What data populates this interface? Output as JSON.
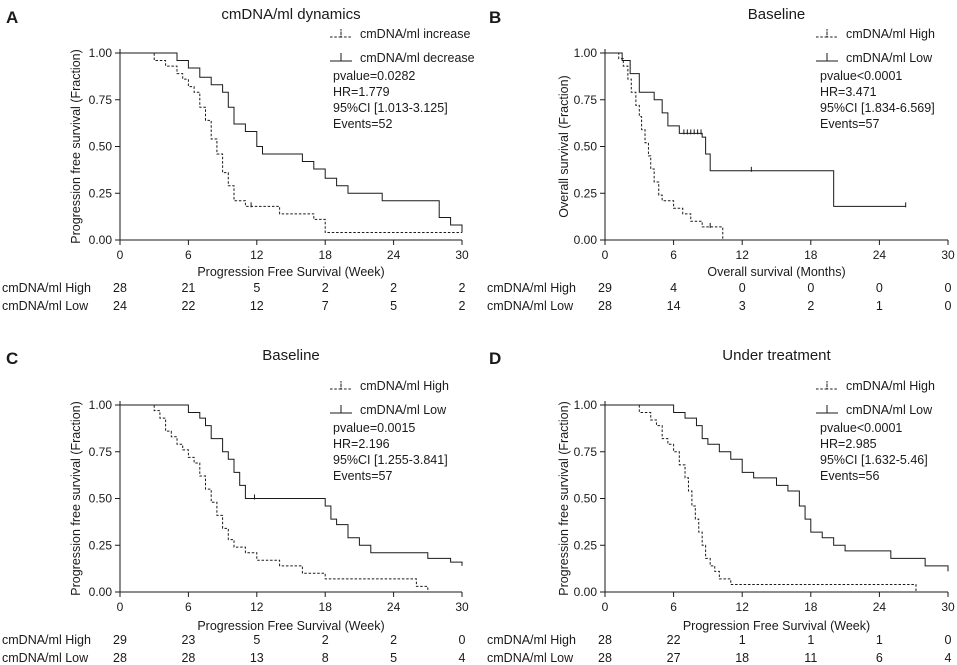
{
  "figure": {
    "layout": "2x2 grid of Kaplan-Meier survival panels"
  },
  "chart_data": [
    {
      "panel": "A",
      "type": "line",
      "subtype": "kaplan-meier",
      "title": "cmDNA/ml dynamics",
      "xlabel": "Progression Free Survival (Week)",
      "ylabel": "Progression free survival (Fraction)",
      "xlim": [
        0,
        30
      ],
      "ylim": [
        0,
        1.0
      ],
      "xticks": [
        "0",
        "6",
        "12",
        "18",
        "24",
        "30"
      ],
      "yticks": [
        "0.00",
        "0.25",
        "0.50",
        "0.75",
        "1.00"
      ],
      "legend_position": "top-right",
      "series": [
        {
          "name": "cmDNA/ml increase",
          "style": "dashed",
          "steps": [
            [
              0,
              1.0
            ],
            [
              3,
              0.96
            ],
            [
              4,
              0.93
            ],
            [
              5,
              0.89
            ],
            [
              5.5,
              0.86
            ],
            [
              6,
              0.82
            ],
            [
              6.5,
              0.79
            ],
            [
              7,
              0.71
            ],
            [
              7.5,
              0.64
            ],
            [
              8,
              0.54
            ],
            [
              8.5,
              0.46
            ],
            [
              9,
              0.36
            ],
            [
              9.5,
              0.29
            ],
            [
              10,
              0.21
            ],
            [
              11,
              0.18
            ],
            [
              14,
              0.14
            ],
            [
              17,
              0.11
            ],
            [
              18,
              0.04
            ],
            [
              30,
              0.04
            ]
          ],
          "censor": [
            11.5
          ]
        },
        {
          "name": "cmDNA/ml decrease",
          "style": "solid",
          "steps": [
            [
              0,
              1.0
            ],
            [
              5,
              0.96
            ],
            [
              6,
              0.92
            ],
            [
              7,
              0.87
            ],
            [
              8,
              0.83
            ],
            [
              9,
              0.79
            ],
            [
              9.5,
              0.71
            ],
            [
              10,
              0.62
            ],
            [
              11,
              0.58
            ],
            [
              12,
              0.5
            ],
            [
              12.5,
              0.46
            ],
            [
              16,
              0.42
            ],
            [
              17,
              0.38
            ],
            [
              18,
              0.33
            ],
            [
              19,
              0.29
            ],
            [
              20,
              0.25
            ],
            [
              23,
              0.21
            ],
            [
              28,
              0.12
            ],
            [
              29,
              0.08
            ],
            [
              30,
              0.04
            ]
          ],
          "censor": []
        }
      ],
      "stats": {
        "pvalue": "pvalue=0.0282",
        "hr": "HR=1.779",
        "ci": "95%CI [1.013-3.125]",
        "events": "Events=52"
      },
      "risk_table": [
        {
          "label": "cmDNA/ml High",
          "counts": [
            "28",
            "21",
            "5",
            "2",
            "2",
            "2"
          ]
        },
        {
          "label": "cmDNA/ml Low",
          "counts": [
            "24",
            "22",
            "12",
            "7",
            "5",
            "2"
          ]
        }
      ]
    },
    {
      "panel": "B",
      "type": "line",
      "subtype": "kaplan-meier",
      "title": "Baseline",
      "xlabel": "Overall survival (Months)",
      "ylabel": "Overall survival (Fraction)",
      "xlim": [
        0,
        30
      ],
      "ylim": [
        0,
        1.0
      ],
      "xticks": [
        "0",
        "6",
        "12",
        "18",
        "24",
        "30"
      ],
      "yticks": [
        "0.00",
        "0.25",
        "0.50",
        "0.75",
        "1.00"
      ],
      "legend_position": "top-right",
      "series": [
        {
          "name": "cmDNA/ml High",
          "style": "dashed",
          "steps": [
            [
              0,
              1.0
            ],
            [
              1.2,
              0.97
            ],
            [
              1.6,
              0.93
            ],
            [
              2,
              0.86
            ],
            [
              2.3,
              0.79
            ],
            [
              2.7,
              0.72
            ],
            [
              3,
              0.66
            ],
            [
              3.2,
              0.59
            ],
            [
              3.5,
              0.52
            ],
            [
              3.8,
              0.45
            ],
            [
              4,
              0.38
            ],
            [
              4.3,
              0.31
            ],
            [
              4.7,
              0.24
            ],
            [
              5,
              0.21
            ],
            [
              6,
              0.17
            ],
            [
              6.8,
              0.14
            ],
            [
              7.5,
              0.1
            ],
            [
              8.5,
              0.07
            ],
            [
              10.3,
              0.0
            ]
          ],
          "censor": [
            9.2
          ]
        },
        {
          "name": "cmDNA/ml Low",
          "style": "solid",
          "steps": [
            [
              0,
              1.0
            ],
            [
              1.5,
              0.96
            ],
            [
              2.2,
              0.89
            ],
            [
              3,
              0.79
            ],
            [
              4.3,
              0.75
            ],
            [
              5,
              0.68
            ],
            [
              5.5,
              0.61
            ],
            [
              6.5,
              0.57
            ],
            [
              8.5,
              0.55
            ],
            [
              8.8,
              0.46
            ],
            [
              9.2,
              0.37
            ],
            [
              20,
              0.18
            ],
            [
              26.3,
              0.18
            ]
          ],
          "censor": [
            6.9,
            7.2,
            7.5,
            7.8,
            8.1,
            8.4,
            12.8,
            26.3
          ]
        }
      ],
      "stats": {
        "pvalue": "pvalue<0.0001",
        "hr": "HR=3.471",
        "ci": "95%CI [1.834-6.569]",
        "events": "Events=57"
      },
      "risk_table": [
        {
          "label": "cmDNA/ml High",
          "counts": [
            "29",
            "4",
            "0",
            "0",
            "0",
            "0"
          ]
        },
        {
          "label": "cmDNA/ml Low",
          "counts": [
            "28",
            "14",
            "3",
            "2",
            "1",
            "0"
          ]
        }
      ]
    },
    {
      "panel": "C",
      "type": "line",
      "subtype": "kaplan-meier",
      "title": "Baseline",
      "xlabel": "Progression Free Survival (Week)",
      "ylabel": "Progression free survival (Fraction)",
      "xlim": [
        0,
        30
      ],
      "ylim": [
        0,
        1.0
      ],
      "xticks": [
        "0",
        "6",
        "12",
        "18",
        "24",
        "30"
      ],
      "yticks": [
        "0.00",
        "0.25",
        "0.50",
        "0.75",
        "1.00"
      ],
      "legend_position": "top-right",
      "series": [
        {
          "name": "cmDNA/ml High",
          "style": "dashed",
          "steps": [
            [
              0,
              1.0
            ],
            [
              3,
              0.97
            ],
            [
              3.5,
              0.93
            ],
            [
              4,
              0.86
            ],
            [
              4.5,
              0.83
            ],
            [
              5,
              0.79
            ],
            [
              5.5,
              0.76
            ],
            [
              6,
              0.72
            ],
            [
              6.5,
              0.69
            ],
            [
              7,
              0.62
            ],
            [
              7.5,
              0.55
            ],
            [
              8,
              0.48
            ],
            [
              8.5,
              0.41
            ],
            [
              9,
              0.34
            ],
            [
              9.5,
              0.28
            ],
            [
              10,
              0.24
            ],
            [
              11,
              0.21
            ],
            [
              12,
              0.17
            ],
            [
              14,
              0.14
            ],
            [
              16,
              0.1
            ],
            [
              18,
              0.07
            ],
            [
              26,
              0.03
            ],
            [
              27,
              0.0
            ]
          ],
          "censor": []
        },
        {
          "name": "cmDNA/ml Low",
          "style": "solid",
          "steps": [
            [
              0,
              1.0
            ],
            [
              6,
              0.96
            ],
            [
              7,
              0.93
            ],
            [
              7.5,
              0.89
            ],
            [
              8,
              0.82
            ],
            [
              9,
              0.75
            ],
            [
              9.5,
              0.71
            ],
            [
              10,
              0.64
            ],
            [
              10.5,
              0.57
            ],
            [
              11,
              0.5
            ],
            [
              18,
              0.46
            ],
            [
              18.5,
              0.39
            ],
            [
              19,
              0.36
            ],
            [
              20,
              0.29
            ],
            [
              21,
              0.25
            ],
            [
              22,
              0.21
            ],
            [
              27,
              0.18
            ],
            [
              29,
              0.16
            ],
            [
              30,
              0.14
            ]
          ],
          "censor": [
            11.8
          ]
        }
      ],
      "stats": {
        "pvalue": "pvalue=0.0015",
        "hr": "HR=2.196",
        "ci": "95%CI [1.255-3.841]",
        "events": "Events=57"
      },
      "risk_table": [
        {
          "label": "cmDNA/ml High",
          "counts": [
            "29",
            "23",
            "5",
            "2",
            "2",
            "0"
          ]
        },
        {
          "label": "cmDNA/ml Low",
          "counts": [
            "28",
            "28",
            "13",
            "8",
            "5",
            "4"
          ]
        }
      ]
    },
    {
      "panel": "D",
      "type": "line",
      "subtype": "kaplan-meier",
      "title": "Under treatment",
      "xlabel": "Progression Free Survival (Week)",
      "ylabel": "Progression free survival (Fraction)",
      "xlim": [
        0,
        30
      ],
      "ylim": [
        0,
        1.0
      ],
      "xticks": [
        "0",
        "6",
        "12",
        "18",
        "24",
        "30"
      ],
      "yticks": [
        "0.00",
        "0.25",
        "0.50",
        "0.75",
        "1.00"
      ],
      "legend_position": "top-right",
      "series": [
        {
          "name": "cmDNA/ml High",
          "style": "dashed",
          "steps": [
            [
              0,
              1.0
            ],
            [
              3,
              0.96
            ],
            [
              4,
              0.92
            ],
            [
              4.5,
              0.89
            ],
            [
              5,
              0.82
            ],
            [
              5.5,
              0.79
            ],
            [
              6,
              0.75
            ],
            [
              6.5,
              0.68
            ],
            [
              7,
              0.61
            ],
            [
              7.3,
              0.54
            ],
            [
              7.6,
              0.46
            ],
            [
              7.9,
              0.39
            ],
            [
              8.2,
              0.32
            ],
            [
              8.5,
              0.25
            ],
            [
              8.8,
              0.18
            ],
            [
              9.2,
              0.14
            ],
            [
              9.6,
              0.11
            ],
            [
              10,
              0.07
            ],
            [
              11,
              0.04
            ],
            [
              27,
              0.04
            ],
            [
              27.2,
              0.0
            ]
          ],
          "censor": []
        },
        {
          "name": "cmDNA/ml Low",
          "style": "solid",
          "steps": [
            [
              0,
              1.0
            ],
            [
              6,
              0.96
            ],
            [
              7,
              0.93
            ],
            [
              8,
              0.89
            ],
            [
              8.5,
              0.82
            ],
            [
              9,
              0.79
            ],
            [
              10,
              0.75
            ],
            [
              11,
              0.71
            ],
            [
              12,
              0.64
            ],
            [
              13,
              0.61
            ],
            [
              15,
              0.57
            ],
            [
              16,
              0.54
            ],
            [
              17,
              0.46
            ],
            [
              17.5,
              0.39
            ],
            [
              18,
              0.32
            ],
            [
              19,
              0.29
            ],
            [
              20,
              0.25
            ],
            [
              21,
              0.22
            ],
            [
              25,
              0.18
            ],
            [
              28,
              0.14
            ],
            [
              30,
              0.11
            ]
          ],
          "censor": []
        }
      ],
      "stats": {
        "pvalue": "pvalue<0.0001",
        "hr": "HR=2.985",
        "ci": "95%CI [1.632-5.46]",
        "events": "Events=56"
      },
      "risk_table": [
        {
          "label": "cmDNA/ml High",
          "counts": [
            "28",
            "22",
            "1",
            "1",
            "1",
            "0"
          ]
        },
        {
          "label": "cmDNA/ml Low",
          "counts": [
            "28",
            "27",
            "18",
            "11",
            "6",
            "4"
          ]
        }
      ]
    }
  ]
}
